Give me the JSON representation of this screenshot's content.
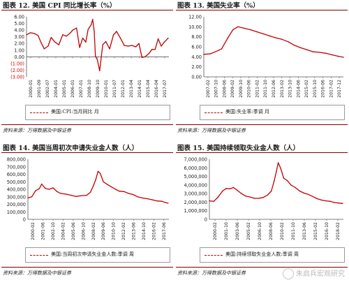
{
  "panels": [
    {
      "title": "图表 12. 美国 CPI 同比增长率（%）",
      "legend": "美国:CPI:当月同比 月",
      "source": "资料来源：万得数据及中银证券"
    },
    {
      "title": "图表 13. 美国失业率（%）",
      "legend": "美国:失业率:季调 月",
      "source": "资料来源：万得数据及中银证券"
    },
    {
      "title": "图表 14. 美国当周初次申请失业金人数（人）",
      "legend": "美国:当周初次申请失业金人数:季调 周",
      "source": "资料来源：万得数据及中银证券"
    },
    {
      "title": "图表 15. 美国持续领取失业金人数（人）",
      "legend": "美国:持续领取失业金人数:季调 周",
      "source": "资料来源：万得数据及中银证券"
    }
  ],
  "watermark": "朱启兵宏观研究",
  "colors": {
    "series": "#c00000",
    "rule": "#7a0000",
    "axis": "#555555"
  },
  "chart_data": [
    {
      "type": "line",
      "title": "图表 12. 美国 CPI 同比增长率（%）",
      "series_name": "美国:CPI:当月同比 月",
      "ylim": [
        -3,
        6
      ],
      "yticks": [
        6,
        5,
        4,
        3,
        2,
        1,
        0,
        -1,
        -2,
        -3
      ],
      "ytick_labels": [
        "6.00",
        "5.00",
        "4.00",
        "3.00",
        "2.00",
        "1.00",
        "0.00",
        "(1.00)",
        "(2.00)",
        "(3.00)"
      ],
      "xlim": [
        2000.0,
        2018.5
      ],
      "xtick_labels": [
        "2000-01",
        "2001-09",
        "2002-07",
        "2004-01",
        "2005-01",
        "2006-01",
        "2007-01",
        "2008-10",
        "2009-10",
        "2010-01",
        "2011-07",
        "2012-01",
        "2013-04",
        "2014-01",
        "2015-04",
        "2016-04",
        "2017-07"
      ],
      "x": [
        2000.0,
        2000.5,
        2001.0,
        2001.5,
        2001.9,
        2002.3,
        2002.8,
        2003.2,
        2003.7,
        2004.2,
        2004.7,
        2005.2,
        2005.7,
        2006.0,
        2006.5,
        2006.9,
        2007.3,
        2007.7,
        2008.0,
        2008.4,
        2008.6,
        2008.8,
        2008.95,
        2009.2,
        2009.5,
        2009.9,
        2010.3,
        2010.8,
        2011.3,
        2011.7,
        2012.2,
        2012.7,
        2013.2,
        2013.7,
        2014.2,
        2014.6,
        2015.0,
        2015.4,
        2015.9,
        2016.3,
        2016.7,
        2017.1,
        2017.5,
        2017.9,
        2018.4
      ],
      "y": [
        3.3,
        3.6,
        3.5,
        3.2,
        2.1,
        1.2,
        1.6,
        2.9,
        2.2,
        1.8,
        3.3,
        3.1,
        3.6,
        4.0,
        4.3,
        1.4,
        2.8,
        2.2,
        4.1,
        4.8,
        5.6,
        3.8,
        0.1,
        -0.4,
        -2.1,
        1.8,
        2.3,
        1.2,
        3.3,
        3.8,
        2.8,
        1.7,
        1.6,
        1.7,
        1.5,
        2.0,
        -0.1,
        0.0,
        0.5,
        1.1,
        1.1,
        2.7,
        1.6,
        2.2,
        2.8
      ]
    },
    {
      "type": "line",
      "title": "图表 13. 美国失业率（%）",
      "series_name": "美国:失业率:季调 月",
      "ylim": [
        0,
        12
      ],
      "yticks": [
        12,
        10,
        8,
        6,
        4,
        2,
        0
      ],
      "ytick_labels": [
        "12.00",
        "10.00",
        "8.00",
        "6.00",
        "4.00",
        "2.00",
        "0.00"
      ],
      "xlim": [
        2007.08,
        2018.2
      ],
      "xtick_labels": [
        "2007-02",
        "2007-10",
        "2008-06",
        "2009-02",
        "2009-10",
        "2010-06",
        "2011-02",
        "2011-10",
        "2012-06",
        "2013-02",
        "2013-10",
        "2014-06",
        "2015-02",
        "2015-10",
        "2016-06",
        "2017-02",
        "2017-12"
      ],
      "x": [
        2007.08,
        2007.6,
        2008.0,
        2008.5,
        2009.0,
        2009.4,
        2009.8,
        2010.3,
        2010.8,
        2011.3,
        2011.8,
        2012.3,
        2012.8,
        2013.3,
        2013.8,
        2014.3,
        2014.8,
        2015.3,
        2015.8,
        2016.3,
        2016.8,
        2017.3,
        2017.8,
        2018.2
      ],
      "y": [
        4.5,
        4.6,
        5.0,
        5.6,
        7.8,
        9.4,
        10.0,
        9.7,
        9.4,
        9.0,
        8.6,
        8.2,
        7.8,
        7.5,
        7.0,
        6.3,
        5.8,
        5.4,
        5.0,
        4.9,
        4.7,
        4.4,
        4.1,
        3.9
      ]
    },
    {
      "type": "line",
      "title": "图表 14. 美国当周初次申请失业金人数（人）",
      "series_name": "美国:当周初次申请失业金人数:季调 周",
      "ylim": [
        0,
        800000
      ],
      "yticks": [
        800000,
        700000,
        600000,
        500000,
        400000,
        300000,
        200000,
        100000,
        0
      ],
      "ytick_labels": [
        "800,000",
        "700,000",
        "600,000",
        "500,000",
        "400,000",
        "300,000",
        "200,000",
        "100,000",
        "0"
      ],
      "xlim": [
        2000.0,
        2018.5
      ],
      "xtick_labels": [
        "2000-02",
        "2001-06",
        "2002-10",
        "2004-02",
        "2005-06",
        "2006-10",
        "2008-02",
        "2009-06",
        "2010-10",
        "2012-02",
        "2013-06",
        "2014-10",
        "2016-02",
        "2017-06"
      ],
      "x": [
        2000.0,
        2000.5,
        2001.0,
        2001.5,
        2001.8,
        2002.3,
        2002.8,
        2003.3,
        2003.8,
        2004.3,
        2005.0,
        2005.7,
        2006.3,
        2007.0,
        2007.7,
        2008.2,
        2008.6,
        2008.9,
        2009.2,
        2009.5,
        2009.9,
        2010.5,
        2011.0,
        2011.5,
        2012.0,
        2012.6,
        2013.2,
        2013.8,
        2014.4,
        2015.0,
        2015.6,
        2016.3,
        2017.0,
        2017.6,
        2018.0,
        2018.4
      ],
      "y": [
        285000,
        300000,
        380000,
        410000,
        470000,
        410000,
        400000,
        420000,
        370000,
        345000,
        335000,
        320000,
        305000,
        315000,
        320000,
        360000,
        450000,
        530000,
        640000,
        610000,
        500000,
        460000,
        430000,
        400000,
        375000,
        370000,
        345000,
        330000,
        300000,
        285000,
        275000,
        260000,
        245000,
        240000,
        225000,
        215000
      ]
    },
    {
      "type": "line",
      "title": "图表 15. 美国持续领取失业金人数（人）",
      "series_name": "美国:持续领取失业金人数:季调 周",
      "ylim": [
        0,
        7000000
      ],
      "yticks": [
        7000000,
        6000000,
        5000000,
        4000000,
        3000000,
        2000000,
        1000000,
        0
      ],
      "ytick_labels": [
        "7,000,000",
        "6,000,000",
        "5,000,000",
        "4,000,000",
        "3,000,000",
        "2,000,000",
        "1,000,000",
        "0"
      ],
      "xlim": [
        2000.0,
        2018.4
      ],
      "xtick_labels": [
        "2000-02",
        "2001-10",
        "2003-06",
        "2005-02",
        "2006-10",
        "2008-06",
        "2010-02",
        "2011-10",
        "2013-06",
        "2015-02",
        "2016-10",
        "2018-02"
      ],
      "x": [
        2000.0,
        2000.6,
        2001.2,
        2001.8,
        2002.3,
        2002.8,
        2003.3,
        2003.8,
        2004.4,
        2005.0,
        2005.6,
        2006.2,
        2006.8,
        2007.4,
        2008.0,
        2008.5,
        2008.9,
        2009.2,
        2009.45,
        2009.8,
        2010.2,
        2010.7,
        2011.2,
        2011.8,
        2012.4,
        2013.0,
        2013.6,
        2014.2,
        2014.8,
        2015.4,
        2016.0,
        2016.6,
        2017.2,
        2017.8,
        2018.3
      ],
      "y": [
        2150000,
        2100000,
        2600000,
        3300000,
        3600000,
        3550000,
        3700000,
        3400000,
        3000000,
        2700000,
        2600000,
        2450000,
        2450000,
        2550000,
        2850000,
        3300000,
        4500000,
        5600000,
        6600000,
        5900000,
        4800000,
        4500000,
        4000000,
        3700000,
        3300000,
        3050000,
        2900000,
        2650000,
        2400000,
        2250000,
        2150000,
        2100000,
        1950000,
        1900000,
        1850000
      ]
    }
  ]
}
